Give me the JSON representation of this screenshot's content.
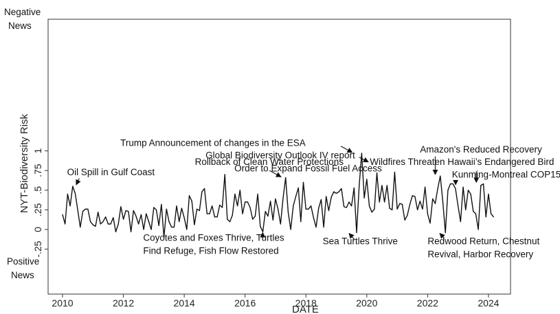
{
  "chart_data": {
    "type": "line",
    "xlabel": "DATE",
    "ylabel": "NYT-Biodiversity Risk",
    "xlim": [
      2009.6,
      2024.9
    ],
    "ylim": [
      -0.27,
      1.05
    ],
    "x_ticks": [
      {
        "value": 2010,
        "label": "2010"
      },
      {
        "value": 2012,
        "label": "2012"
      },
      {
        "value": 2014,
        "label": "2014"
      },
      {
        "value": 2016,
        "label": "2016"
      },
      {
        "value": 2018,
        "label": "2018"
      },
      {
        "value": 2020,
        "label": "2020"
      },
      {
        "value": 2022,
        "label": "2022"
      },
      {
        "value": 2024,
        "label": "2024"
      }
    ],
    "y_ticks": [
      {
        "value": -0.25,
        "label": "-.25"
      },
      {
        "value": 0,
        "label": "0"
      },
      {
        "value": 0.25,
        "label": ".25"
      },
      {
        "value": 0.5,
        "label": ".5"
      },
      {
        "value": 0.75,
        "label": ".75"
      },
      {
        "value": 1,
        "label": "1"
      }
    ],
    "side_labels": {
      "negative": [
        "Negative",
        "News"
      ],
      "positive": [
        "Positive",
        "News"
      ]
    },
    "series": [
      {
        "x_start": 2010.0,
        "x_step": 0.08333,
        "values": [
          0.19,
          0.07,
          0.45,
          0.3,
          0.55,
          0.46,
          0.25,
          0.03,
          0.23,
          0.26,
          0.26,
          0.1,
          0.06,
          0.04,
          0.22,
          0.07,
          0.1,
          0.16,
          0.07,
          0.07,
          0.15,
          -0.03,
          0.07,
          0.29,
          0.13,
          0.24,
          0.23,
          -0.03,
          0.24,
          0.17,
          0.07,
          0.19,
          0.0,
          0.2,
          0.1,
          0.0,
          0.28,
          0.25,
          0.05,
          0.32,
          -0.1,
          0.26,
          0.1,
          0.03,
          0.03,
          0.3,
          0.1,
          0.27,
          0.15,
          0.0,
          0.43,
          0.36,
          0.06,
          0.26,
          0.24,
          0.48,
          0.52,
          0.2,
          0.2,
          0.3,
          0.16,
          0.16,
          0.31,
          0.28,
          0.7,
          0.13,
          0.1,
          0.18,
          0.45,
          0.3,
          0.5,
          0.2,
          0.35,
          0.35,
          0.28,
          0.13,
          0.17,
          0.45,
          0.04,
          -0.03,
          0.23,
          0.17,
          0.36,
          0.12,
          0.39,
          0.26,
          0.07,
          0.4,
          0.66,
          0.22,
          0.0,
          0.3,
          0.42,
          0.53,
          0.1,
          0.6,
          0.26,
          0.26,
          0.3,
          0.15,
          0.03,
          0.27,
          0.38,
          0.03,
          0.42,
          0.24,
          0.41,
          0.48,
          0.46,
          0.48,
          0.52,
          0.29,
          0.28,
          0.35,
          0.3,
          0.53,
          -0.04,
          0.55,
          0.97,
          0.4,
          0.64,
          0.3,
          0.22,
          0.26,
          0.72,
          0.35,
          0.56,
          0.35,
          0.56,
          0.27,
          0.25,
          0.73,
          0.26,
          0.33,
          0.32,
          0.12,
          0.18,
          0.32,
          0.43,
          0.42,
          0.25,
          0.36,
          0.26,
          0.54,
          0.2,
          0.08,
          0.39,
          0.33,
          0.52,
          0.68,
          0.35,
          -0.04,
          0.5,
          0.58,
          0.58,
          0.52,
          0.3,
          0.1,
          0.54,
          0.25,
          0.5,
          0.45,
          0.23,
          0.2,
          0.0,
          0.56,
          0.58,
          0.16,
          0.45,
          0.2,
          0.16
        ]
      }
    ],
    "annotations": [
      {
        "id": "oil-spill",
        "lines": [
          "Oil Spill in Gulf Coast"
        ],
        "point_x": 2010.4,
        "point_y": 0.55,
        "anchor": "start",
        "text_x": 2010.15,
        "text_y": 0.69,
        "tip_x": 2010.45,
        "tip_y": 0.57,
        "tail_x": 2010.55,
        "tail_y": 0.65
      },
      {
        "id": "fossil-fuel",
        "lines": [
          "Order to Expand Fossil Fuel Access"
        ],
        "point_x": 2017.25,
        "point_y": 0.66,
        "anchor": "end",
        "text_x": 2015.65,
        "text_y": 0.74,
        "tip_x": 2017.18,
        "tip_y": 0.67,
        "tail_x": 2016.8,
        "tail_y": 0.75
      },
      {
        "id": "clean-water",
        "lines": [
          "Rollback of Clean Water Protections"
        ],
        "point_x": 2019.0,
        "point_y": 0.7,
        "anchor": "start",
        "text_x": 2014.35,
        "text_y": 0.82,
        "tip_x": null,
        "tip_y": null,
        "tail_x": null,
        "tail_y": null
      },
      {
        "id": "gbo4",
        "lines": [
          "Global Biodiversity Outlook IV report"
        ],
        "point_x": 2020.0,
        "point_y": 0.75,
        "anchor": "start",
        "text_x": 2014.7,
        "text_y": 0.905,
        "tip_x": 2020.05,
        "tip_y": 0.86,
        "tail_x": 2019.75,
        "tail_y": 0.92
      },
      {
        "id": "trump-esa",
        "lines": [
          "Trump Announcement of changes in the ESA"
        ],
        "point_x": 2019.58,
        "point_y": 0.97,
        "anchor": "start",
        "text_x": 2011.9,
        "text_y": 1.06,
        "tip_x": 2019.52,
        "tip_y": 0.98,
        "tail_x": 2019.15,
        "tail_y": 1.06
      },
      {
        "id": "wildfires-hawaii",
        "lines": [
          "Wildfires Threaten Hawaii’s Endangered Bird"
        ],
        "point_x": 2020.1,
        "point_y": 0.86,
        "anchor": "start",
        "text_x": 2020.1,
        "text_y": 0.82,
        "tip_x": null,
        "tip_y": null,
        "tail_x": null,
        "tail_y": null
      },
      {
        "id": "amazon",
        "lines": [
          "Amazon's Reduced Recovery"
        ],
        "point_x": 2022.25,
        "point_y": 0.68,
        "anchor": "start",
        "text_x": 2021.75,
        "text_y": 0.98,
        "tip_x": 2022.25,
        "tip_y": 0.7,
        "tail_x": 2022.25,
        "tail_y": 0.93
      },
      {
        "id": "kunming",
        "lines": [
          "Kunming-Montreal COP15"
        ],
        "point_x": 2022.92,
        "point_y": 0.55,
        "anchor": "start",
        "text_x": 2022.8,
        "text_y": 0.66,
        "tip_x": 2022.92,
        "tip_y": 0.57,
        "tail_x": 2022.92,
        "tail_y": 0.62
      },
      {
        "id": "wildfire-arrow2",
        "lines": [],
        "point_x": 2023.58,
        "point_y": 0.58,
        "anchor": "start",
        "text_x": null,
        "text_y": null,
        "tip_x": 2023.6,
        "tip_y": 0.6,
        "tail_x": 2023.6,
        "tail_y": 0.74
      },
      {
        "id": "coyotes",
        "lines": [
          "Coyotes and Foxes Thrive, Turtles",
          "Find Refuge, Fish Flow Restored"
        ],
        "point_x": 2016.58,
        "point_y": -0.03,
        "anchor": "start",
        "text_x": 2012.65,
        "text_y": -0.145,
        "tip_x": 2016.58,
        "tip_y": -0.04,
        "tail_x": 2016.58,
        "tail_y": -0.1
      },
      {
        "id": "sea-turtles",
        "lines": [
          "Sea Turtles Thrive"
        ],
        "point_x": 2019.42,
        "point_y": -0.04,
        "anchor": "start",
        "text_x": 2018.55,
        "text_y": -0.19,
        "tip_x": 2019.42,
        "tip_y": -0.05,
        "tail_x": 2019.6,
        "tail_y": -0.13
      },
      {
        "id": "redwood",
        "lines": [
          "Redwood Return, Chestnut",
          "Revival, Harbor Recovery"
        ],
        "point_x": 2022.42,
        "point_y": -0.04,
        "anchor": "start",
        "text_x": 2022.0,
        "text_y": -0.19,
        "tip_x": 2022.4,
        "tip_y": -0.05,
        "tail_x": 2022.55,
        "tail_y": -0.11
      }
    ]
  }
}
